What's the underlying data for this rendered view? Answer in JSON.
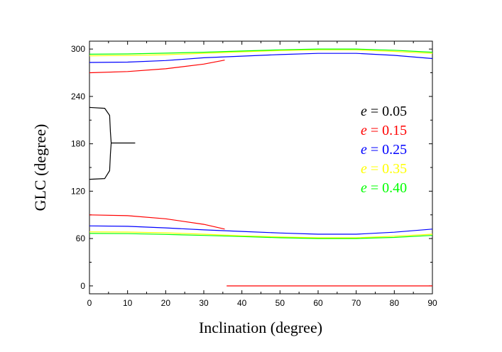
{
  "chart_data": {
    "type": "line",
    "xlabel": "Inclination (degree)",
    "ylabel": "GLC (degree)",
    "xlim": [
      0,
      90
    ],
    "ylim": [
      -10,
      310
    ],
    "xticks": [
      0,
      10,
      20,
      30,
      40,
      50,
      60,
      70,
      80,
      90
    ],
    "yticks": [
      0,
      60,
      120,
      180,
      240,
      300
    ],
    "grid": false,
    "legend_position": "right",
    "series": [
      {
        "name": "e = 0.05",
        "legend_var": "e",
        "legend_value": "= 0.05",
        "color": "#000000",
        "segments": [
          [
            [
              0,
              226
            ],
            [
              4,
              225
            ],
            [
              5.3,
              216
            ],
            [
              5.5,
              195
            ],
            [
              5.7,
              181
            ],
            [
              12,
              181
            ]
          ],
          [
            [
              5.7,
              181
            ],
            [
              5.5,
              167
            ],
            [
              5.3,
              146
            ],
            [
              4,
              136
            ],
            [
              0,
              135
            ]
          ]
        ]
      },
      {
        "name": "e = 0.15",
        "legend_var": "e",
        "legend_value": "= 0.15",
        "color": "#ff0000",
        "segments": [
          [
            [
              0,
              270
            ],
            [
              10,
              271.5
            ],
            [
              20,
              275
            ],
            [
              30,
              281
            ],
            [
              35.5,
              286
            ]
          ],
          [
            [
              0,
              90
            ],
            [
              10,
              89
            ],
            [
              20,
              85
            ],
            [
              30,
              78
            ],
            [
              35.5,
              72
            ]
          ],
          [
            [
              36,
              0
            ],
            [
              90,
              0
            ]
          ]
        ]
      },
      {
        "name": "e = 0.25",
        "legend_var": "e",
        "legend_value": "= 0.25",
        "color": "#0000ff",
        "segments": [
          [
            [
              0,
              283
            ],
            [
              10,
              283.5
            ],
            [
              20,
              285.5
            ],
            [
              30,
              289
            ],
            [
              40,
              291
            ],
            [
              50,
              293
            ],
            [
              60,
              294.5
            ],
            [
              70,
              294.5
            ],
            [
              80,
              292
            ],
            [
              90,
              288
            ]
          ],
          [
            [
              0,
              76
            ],
            [
              10,
              75.5
            ],
            [
              20,
              73.5
            ],
            [
              30,
              71
            ],
            [
              40,
              69
            ],
            [
              50,
              67
            ],
            [
              60,
              65.5
            ],
            [
              70,
              65.5
            ],
            [
              80,
              68
            ],
            [
              90,
              72
            ]
          ]
        ]
      },
      {
        "name": "e = 0.35",
        "legend_var": "e",
        "legend_value": "= 0.35",
        "color": "#ffff00",
        "segments": [
          [
            [
              0,
              291.5
            ],
            [
              10,
              291.8
            ],
            [
              20,
              292.8
            ],
            [
              30,
              294.5
            ],
            [
              40,
              296.5
            ],
            [
              50,
              298
            ],
            [
              60,
              299
            ],
            [
              70,
              299
            ],
            [
              80,
              297
            ],
            [
              90,
              294.5
            ]
          ],
          [
            [
              0,
              68.5
            ],
            [
              10,
              68.2
            ],
            [
              20,
              67.2
            ],
            [
              30,
              65.5
            ],
            [
              40,
              63.5
            ],
            [
              50,
              62
            ],
            [
              60,
              61
            ],
            [
              70,
              61
            ],
            [
              80,
              63
            ],
            [
              90,
              65.5
            ]
          ]
        ]
      },
      {
        "name": "e = 0.40",
        "legend_var": "e",
        "legend_value": "= 0.40",
        "color": "#00ff00",
        "segments": [
          [
            [
              0,
              293.5
            ],
            [
              10,
              293.8
            ],
            [
              20,
              294.8
            ],
            [
              30,
              296
            ],
            [
              40,
              297.5
            ],
            [
              50,
              299
            ],
            [
              60,
              300
            ],
            [
              70,
              300
            ],
            [
              80,
              298.5
            ],
            [
              90,
              296
            ]
          ],
          [
            [
              0,
              66.5
            ],
            [
              10,
              66.2
            ],
            [
              20,
              65.2
            ],
            [
              30,
              64
            ],
            [
              40,
              62.5
            ],
            [
              50,
              61
            ],
            [
              60,
              60
            ],
            [
              70,
              60
            ],
            [
              80,
              61.5
            ],
            [
              90,
              64
            ]
          ]
        ]
      }
    ]
  }
}
